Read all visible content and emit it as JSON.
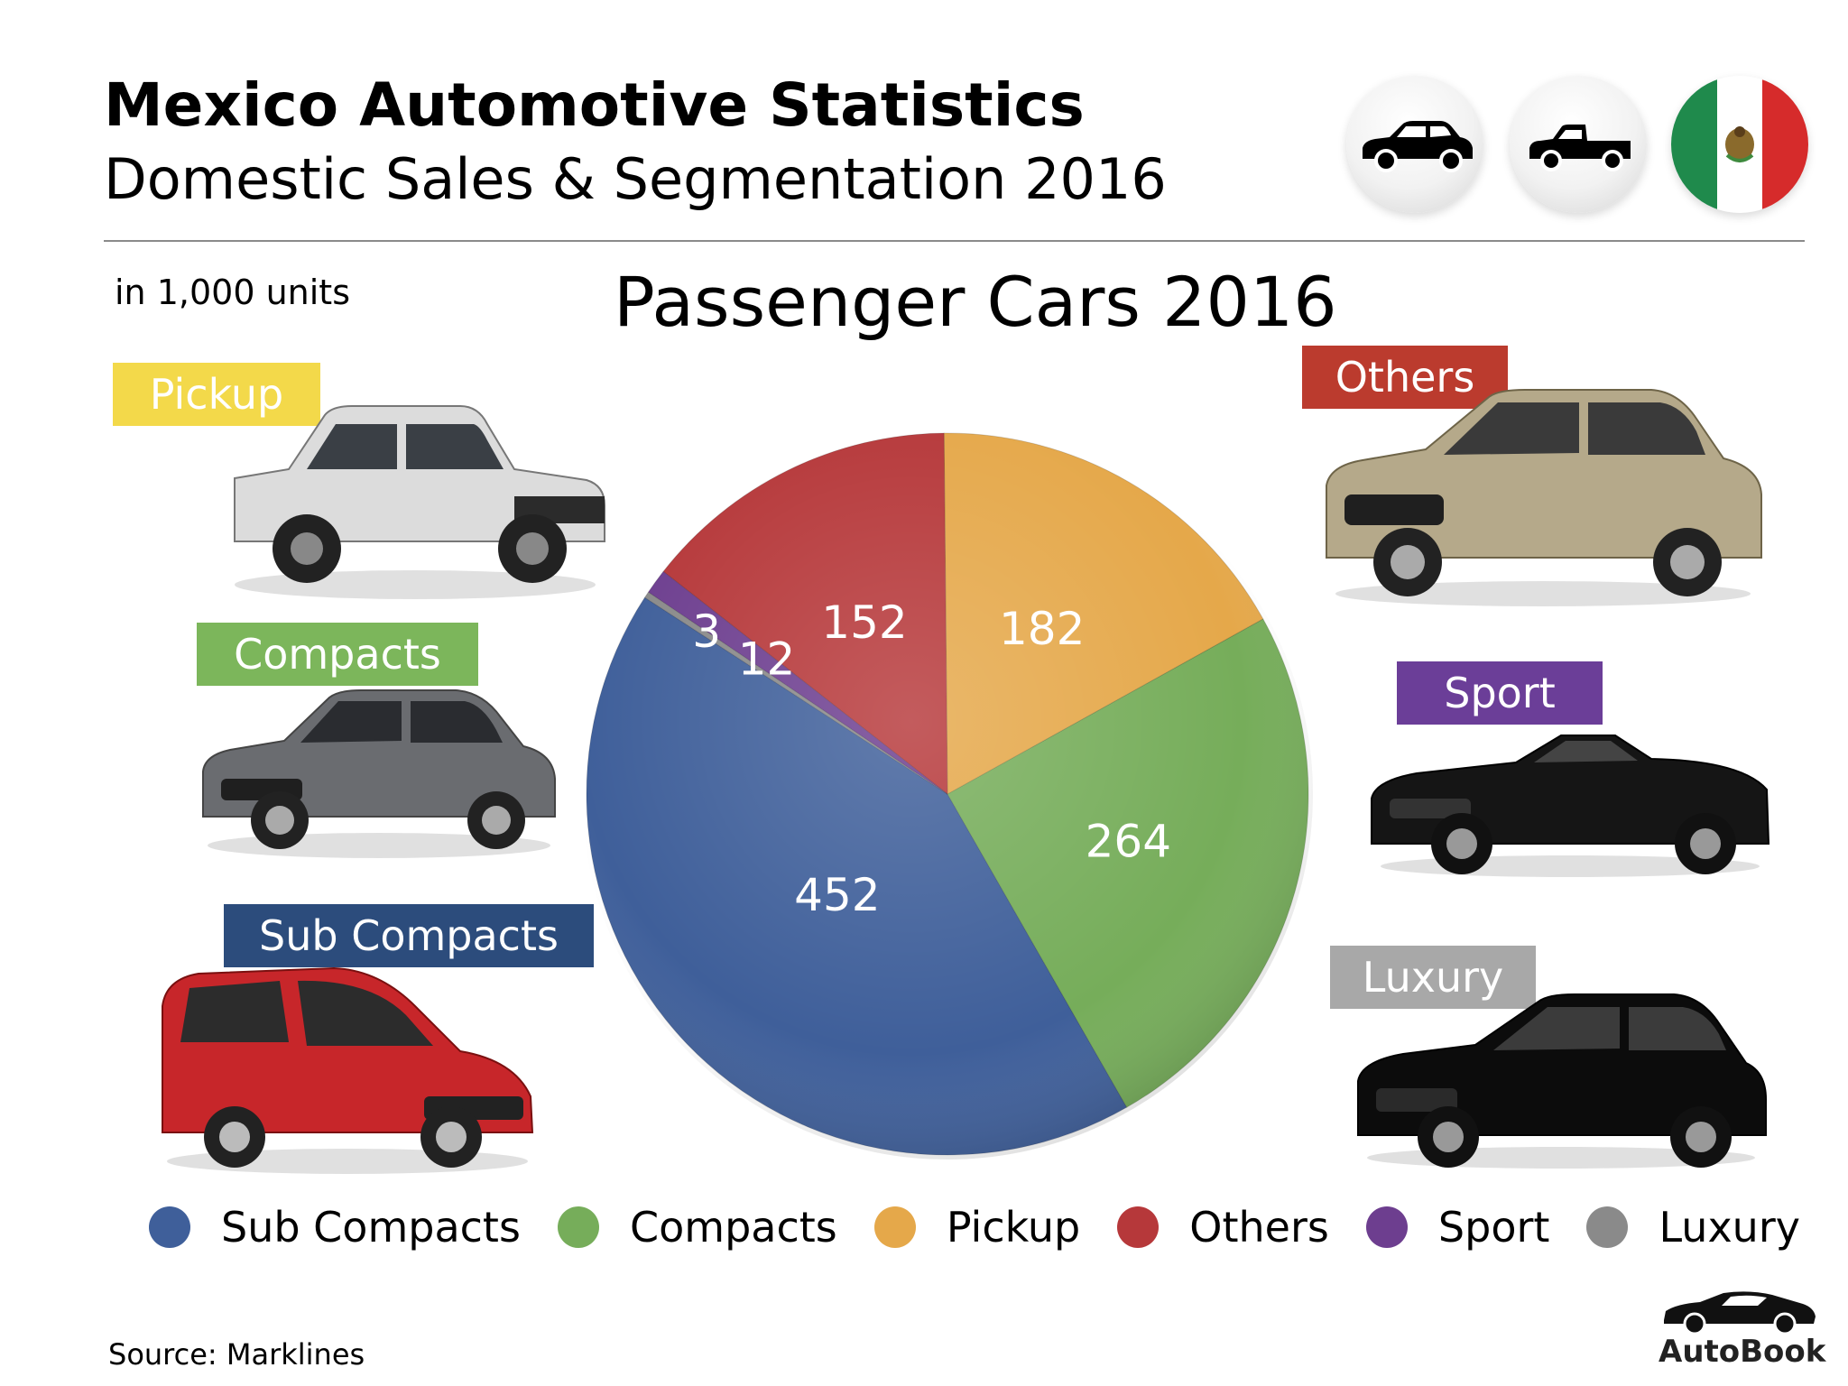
{
  "header": {
    "title": "Mexico Automotive Statistics",
    "subtitle": "Domestic Sales & Segmentation 2016"
  },
  "units_note": "in 1,000 units",
  "chart_data": {
    "type": "pie",
    "title": "Passenger Cars 2016",
    "categories": [
      "Sub Compacts",
      "Compacts",
      "Pickup",
      "Others",
      "Sport",
      "Luxury"
    ],
    "values": [
      452,
      264,
      182,
      152,
      12,
      3
    ],
    "colors": [
      "#3f5f9a",
      "#76ad5a",
      "#e5a84a",
      "#b6383a",
      "#6d3e8f",
      "#8a8a8a"
    ],
    "start_angle_deg": 147,
    "direction": "counterclockwise"
  },
  "segment_labels": {
    "pickup": "Pickup",
    "compacts": "Compacts",
    "sub_compacts": "Sub Compacts",
    "others": "Others",
    "sport": "Sport",
    "luxury": "Luxury"
  },
  "segment_label_colors": {
    "pickup": "#f3d94a",
    "compacts": "#7cb65b",
    "sub_compacts": "#2c4c7c",
    "others": "#bb3b2e",
    "sport": "#6b3e98",
    "luxury": "#a8a8a8"
  },
  "icons": {
    "car_badge": "sedan-icon",
    "pickup_badge": "pickup-truck-icon",
    "flag_badge": "mexico-flag-icon",
    "logo": "sports-car-icon"
  },
  "footer": {
    "source": "Source:  Marklines",
    "brand": "AutoBook"
  }
}
